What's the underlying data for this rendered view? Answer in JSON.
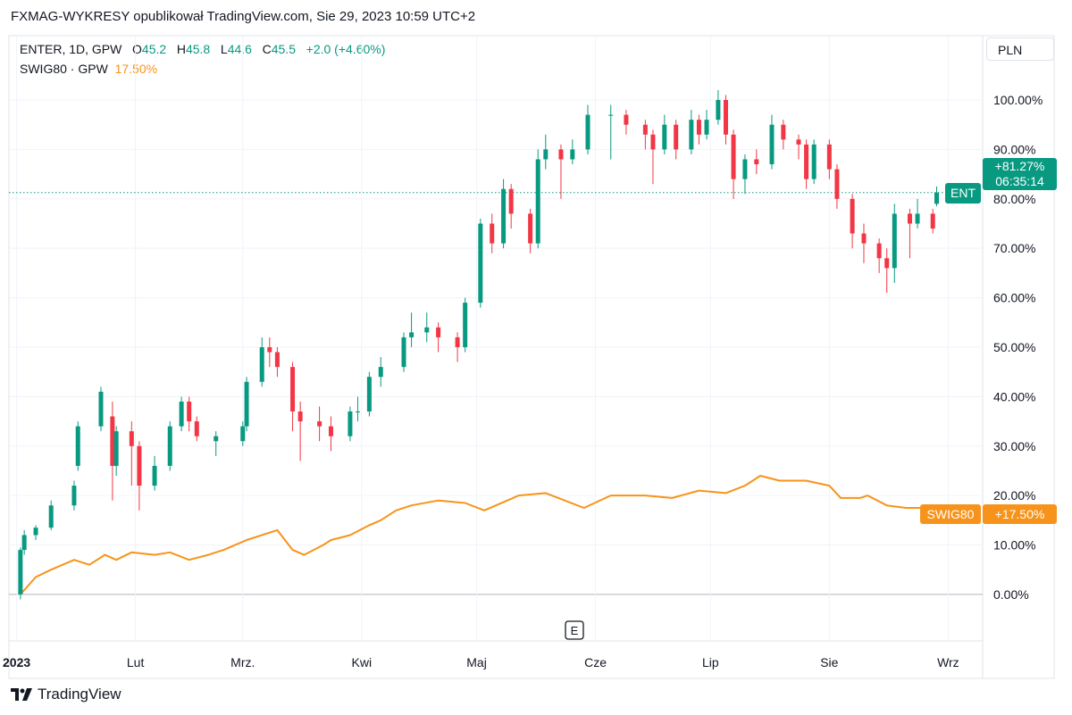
{
  "header": {
    "title": "FXMAG-WYKRESY opublikował TradingView.com, Sie 29, 2023 10:59 UTC+2"
  },
  "legend": {
    "main": {
      "symbol": "ENTER, 1D, GPW",
      "o_label": "O",
      "o": "45.2",
      "h_label": "H",
      "h": "45.8",
      "l_label": "L",
      "l": "44.6",
      "c_label": "C",
      "c": "45.5",
      "change": "+2.0 (+4.60%)"
    },
    "compare": {
      "symbol": "SWIG80 · GPW",
      "value": "17.50%"
    }
  },
  "currency_button": "PLN",
  "event_marker": "E",
  "price_labels": {
    "main": {
      "name": "ENT",
      "value": "+81.27%",
      "countdown": "06:35:14"
    },
    "compare": {
      "name": "SWIG80",
      "value": "+17.50%"
    }
  },
  "branding": "TradingView",
  "colors": {
    "up": "#089981",
    "down": "#f23645",
    "compare": "#f7931a",
    "text": "#131722"
  },
  "chart_data": {
    "type": "candlestick",
    "ylabel": "",
    "y_scale": "percent",
    "ylim": [
      -9.4,
      113
    ],
    "grid": true,
    "y_ticks": [
      "0.00%",
      "10.00%",
      "20.00%",
      "30.00%",
      "40.00%",
      "50.00%",
      "60.00%",
      "70.00%",
      "80.00%",
      "90.00%",
      "100.00%"
    ],
    "y_tick_values": [
      0,
      10,
      20,
      30,
      40,
      50,
      60,
      70,
      80,
      90,
      100
    ],
    "x_ticks": [
      {
        "label": "2023",
        "date": "2023-01-01"
      },
      {
        "label": "Lut",
        "date": "2023-02-01"
      },
      {
        "label": "Mrz.",
        "date": "2023-03-01"
      },
      {
        "label": "Kwi",
        "date": "2023-04-01"
      },
      {
        "label": "Maj",
        "date": "2023-05-01"
      },
      {
        "label": "Cze",
        "date": "2023-06-01"
      },
      {
        "label": "Lip",
        "date": "2023-07-01"
      },
      {
        "label": "Sie",
        "date": "2023-08-01"
      },
      {
        "label": "Wrz",
        "date": "2023-09-01"
      }
    ],
    "xlim": [
      "2022-12-30",
      "2023-09-10"
    ],
    "last_value": 81.27,
    "series": [
      {
        "name": "ENTER",
        "kind": "candles",
        "columns": [
          "date",
          "open",
          "high",
          "low",
          "close"
        ],
        "values": [
          [
            "2023-01-02",
            0,
            9.5,
            -1,
            9
          ],
          [
            "2023-01-03",
            9,
            13,
            8,
            12
          ],
          [
            "2023-01-06",
            12,
            14,
            11,
            13.5
          ],
          [
            "2023-01-10",
            13.5,
            19,
            13,
            18
          ],
          [
            "2023-01-16",
            18,
            23,
            17,
            22
          ],
          [
            "2023-01-17",
            26,
            35,
            25,
            34
          ],
          [
            "2023-01-23",
            34,
            42,
            33,
            41
          ],
          [
            "2023-01-26",
            36,
            39,
            19,
            26
          ],
          [
            "2023-01-27",
            26,
            34,
            24,
            33
          ],
          [
            "2023-01-31",
            33,
            35,
            22,
            30
          ],
          [
            "2023-02-02",
            30,
            31,
            17,
            22
          ],
          [
            "2023-02-06",
            22,
            28,
            21,
            26
          ],
          [
            "2023-02-10",
            26,
            35,
            25,
            34
          ],
          [
            "2023-02-13",
            34,
            40,
            33,
            39
          ],
          [
            "2023-02-15",
            39,
            40,
            33,
            35
          ],
          [
            "2023-02-17",
            35,
            36,
            31,
            32
          ],
          [
            "2023-02-22",
            31,
            33,
            28,
            32
          ],
          [
            "2023-03-01",
            31,
            35,
            30,
            34
          ],
          [
            "2023-03-02",
            34,
            44,
            33,
            43
          ],
          [
            "2023-03-06",
            43,
            52,
            42,
            50
          ],
          [
            "2023-03-08",
            50,
            52,
            46,
            49
          ],
          [
            "2023-03-10",
            49,
            50,
            44,
            46
          ],
          [
            "2023-03-14",
            46,
            47,
            33,
            37
          ],
          [
            "2023-03-16",
            37,
            39,
            27,
            35
          ],
          [
            "2023-03-21",
            35,
            38,
            31,
            34
          ],
          [
            "2023-03-24",
            34,
            36,
            29,
            32
          ],
          [
            "2023-03-29",
            32,
            38,
            31,
            37
          ],
          [
            "2023-03-31",
            37,
            40,
            35,
            37
          ],
          [
            "2023-04-03",
            37,
            45,
            36,
            44
          ],
          [
            "2023-04-06",
            44,
            48,
            42,
            46
          ],
          [
            "2023-04-12",
            46,
            53,
            45,
            52
          ],
          [
            "2023-04-14",
            52,
            57,
            50,
            53
          ],
          [
            "2023-04-18",
            53,
            57,
            51,
            54
          ],
          [
            "2023-04-21",
            54,
            55,
            49,
            52
          ],
          [
            "2023-04-26",
            52,
            53,
            47,
            50
          ],
          [
            "2023-04-28",
            50,
            60,
            49,
            59
          ],
          [
            "2023-05-02",
            59,
            76,
            58,
            75
          ],
          [
            "2023-05-05",
            75,
            77,
            69,
            71
          ],
          [
            "2023-05-08",
            71,
            84,
            70,
            82
          ],
          [
            "2023-05-10",
            82,
            83,
            74,
            77
          ],
          [
            "2023-05-15",
            77,
            78,
            69,
            71
          ],
          [
            "2023-05-17",
            71,
            90,
            70,
            88
          ],
          [
            "2023-05-19",
            88,
            93,
            86,
            90
          ],
          [
            "2023-05-23",
            90,
            91,
            80,
            88
          ],
          [
            "2023-05-26",
            88,
            92,
            87,
            90
          ],
          [
            "2023-05-30",
            90,
            99,
            89,
            97
          ],
          [
            "2023-06-05",
            97,
            99,
            88,
            97
          ],
          [
            "2023-06-09",
            97,
            98,
            93,
            95
          ],
          [
            "2023-06-14",
            95,
            96,
            90,
            93
          ],
          [
            "2023-06-16",
            93,
            94,
            83,
            90
          ],
          [
            "2023-06-19",
            90,
            97,
            89,
            95
          ],
          [
            "2023-06-22",
            95,
            96,
            88,
            90
          ],
          [
            "2023-06-26",
            90,
            98,
            89,
            96
          ],
          [
            "2023-06-28",
            96,
            97,
            91,
            93
          ],
          [
            "2023-06-30",
            93,
            98,
            92,
            96
          ],
          [
            "2023-07-03",
            96,
            102,
            95,
            100
          ],
          [
            "2023-07-05",
            100,
            101,
            91,
            93
          ],
          [
            "2023-07-07",
            93,
            94,
            80,
            84
          ],
          [
            "2023-07-10",
            84,
            89,
            81,
            88
          ],
          [
            "2023-07-13",
            88,
            90,
            85,
            87
          ],
          [
            "2023-07-17",
            87,
            97,
            86,
            95
          ],
          [
            "2023-07-20",
            95,
            96,
            90,
            92
          ],
          [
            "2023-07-24",
            92,
            93,
            88,
            91
          ],
          [
            "2023-07-26",
            91,
            92,
            82,
            84
          ],
          [
            "2023-07-28",
            84,
            92,
            83,
            91
          ],
          [
            "2023-08-01",
            91,
            92,
            84,
            86
          ],
          [
            "2023-08-03",
            86,
            87,
            78,
            80
          ],
          [
            "2023-08-07",
            80,
            81,
            70,
            73
          ],
          [
            "2023-08-10",
            73,
            75,
            67,
            71
          ],
          [
            "2023-08-14",
            71,
            72,
            65,
            68
          ],
          [
            "2023-08-16",
            68,
            70,
            61,
            66
          ],
          [
            "2023-08-18",
            66,
            79,
            63,
            77
          ],
          [
            "2023-08-22",
            77,
            78,
            68,
            75
          ],
          [
            "2023-08-24",
            75,
            80,
            74,
            77
          ],
          [
            "2023-08-28",
            77,
            78,
            73,
            74
          ],
          [
            "2023-08-29",
            79,
            82.5,
            78.5,
            81.27
          ]
        ]
      },
      {
        "name": "SWIG80",
        "kind": "line",
        "columns": [
          "date",
          "value"
        ],
        "values": [
          [
            "2023-01-02",
            0
          ],
          [
            "2023-01-06",
            3.5
          ],
          [
            "2023-01-10",
            5
          ],
          [
            "2023-01-16",
            7
          ],
          [
            "2023-01-20",
            6
          ],
          [
            "2023-01-24",
            8
          ],
          [
            "2023-01-27",
            7
          ],
          [
            "2023-01-31",
            8.5
          ],
          [
            "2023-02-06",
            8
          ],
          [
            "2023-02-10",
            8.5
          ],
          [
            "2023-02-15",
            7
          ],
          [
            "2023-02-20",
            8
          ],
          [
            "2023-02-24",
            9
          ],
          [
            "2023-03-02",
            11
          ],
          [
            "2023-03-08",
            12.5
          ],
          [
            "2023-03-10",
            13
          ],
          [
            "2023-03-14",
            9
          ],
          [
            "2023-03-17",
            8
          ],
          [
            "2023-03-22",
            10
          ],
          [
            "2023-03-24",
            11
          ],
          [
            "2023-03-29",
            12
          ],
          [
            "2023-04-03",
            14
          ],
          [
            "2023-04-06",
            15
          ],
          [
            "2023-04-10",
            17
          ],
          [
            "2023-04-14",
            18
          ],
          [
            "2023-04-21",
            19
          ],
          [
            "2023-04-28",
            18.5
          ],
          [
            "2023-05-03",
            17
          ],
          [
            "2023-05-09",
            19
          ],
          [
            "2023-05-12",
            20
          ],
          [
            "2023-05-19",
            20.5
          ],
          [
            "2023-05-24",
            19
          ],
          [
            "2023-05-29",
            17.5
          ],
          [
            "2023-06-05",
            20
          ],
          [
            "2023-06-09",
            20
          ],
          [
            "2023-06-14",
            20
          ],
          [
            "2023-06-21",
            19.5
          ],
          [
            "2023-06-28",
            21
          ],
          [
            "2023-07-05",
            20.5
          ],
          [
            "2023-07-10",
            22
          ],
          [
            "2023-07-14",
            24
          ],
          [
            "2023-07-19",
            23
          ],
          [
            "2023-07-26",
            23
          ],
          [
            "2023-08-01",
            22
          ],
          [
            "2023-08-04",
            19.5
          ],
          [
            "2023-08-09",
            19.5
          ],
          [
            "2023-08-11",
            20
          ],
          [
            "2023-08-16",
            18
          ],
          [
            "2023-08-21",
            17.5
          ],
          [
            "2023-08-29",
            17.5
          ]
        ]
      }
    ]
  }
}
